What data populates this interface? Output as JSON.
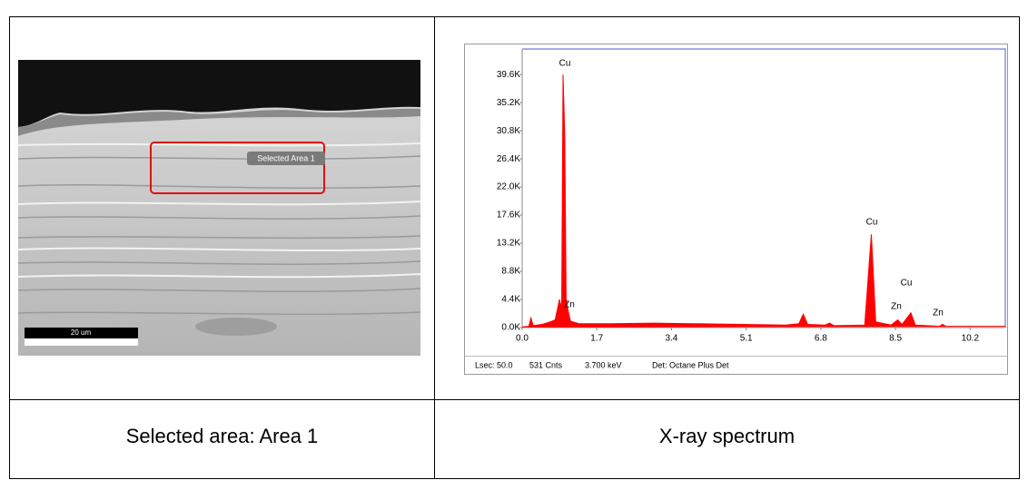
{
  "sem_image": {
    "region_label": "Selected Area 1",
    "scale_bar": "20 um"
  },
  "chart_data": {
    "type": "area",
    "color": "#ff0000",
    "x": [
      0.0,
      0.15,
      0.2,
      0.25,
      0.45,
      0.6,
      0.75,
      0.85,
      0.9,
      0.93,
      0.97,
      1.0,
      1.05,
      1.1,
      1.3,
      2.0,
      3.0,
      4.0,
      5.0,
      6.0,
      6.3,
      6.4,
      6.5,
      6.9,
      7.0,
      7.1,
      7.8,
      7.95,
      8.05,
      8.4,
      8.55,
      8.65,
      8.85,
      8.95,
      9.5,
      9.57,
      9.65,
      10.5,
      11.0
    ],
    "values": [
      0.1,
      0.2,
      1.5,
      0.3,
      0.5,
      0.8,
      1.2,
      4.4,
      3.0,
      39.6,
      30,
      4.4,
      2.5,
      1.0,
      0.6,
      0.6,
      0.7,
      0.6,
      0.5,
      0.4,
      0.6,
      2.1,
      0.5,
      0.4,
      0.7,
      0.3,
      0.4,
      14.6,
      0.9,
      0.4,
      1.2,
      0.5,
      2.3,
      0.4,
      0.2,
      0.5,
      0.2,
      0.2,
      0.2
    ],
    "xlim": [
      0,
      11.0
    ],
    "ylim": [
      0,
      43.6
    ],
    "xticks": [
      {
        "value": 0,
        "label": "0.0"
      },
      1.7,
      3.4,
      5.1,
      6.8,
      8.5,
      10.2
    ],
    "yticks": [
      {
        "value": 0,
        "label": "0.0K"
      },
      {
        "value": 4.4,
        "label": "4.4K"
      },
      {
        "value": 8.8,
        "label": "8.8K"
      },
      {
        "value": 13.2,
        "label": "13.2K"
      },
      {
        "value": 17.6,
        "label": "17.6K"
      },
      {
        "value": 22.0,
        "label": "22.0K"
      },
      {
        "value": 26.4,
        "label": "26.4K"
      },
      {
        "value": 30.8,
        "label": "30.8K"
      },
      {
        "value": 35.2,
        "label": "35.2K"
      },
      {
        "value": 39.6,
        "label": "39.6K"
      }
    ],
    "annotations": [
      "Cu",
      "Cu",
      "Cu",
      "Zn",
      "Zn",
      "Zn"
    ],
    "status": [
      "Lsec: 50.0",
      "531 Cnts",
      "3.700 keV",
      "Det: Octane Plus Det"
    ]
  },
  "captions": [
    "Selected area: Area 1",
    "X-ray spectrum"
  ]
}
